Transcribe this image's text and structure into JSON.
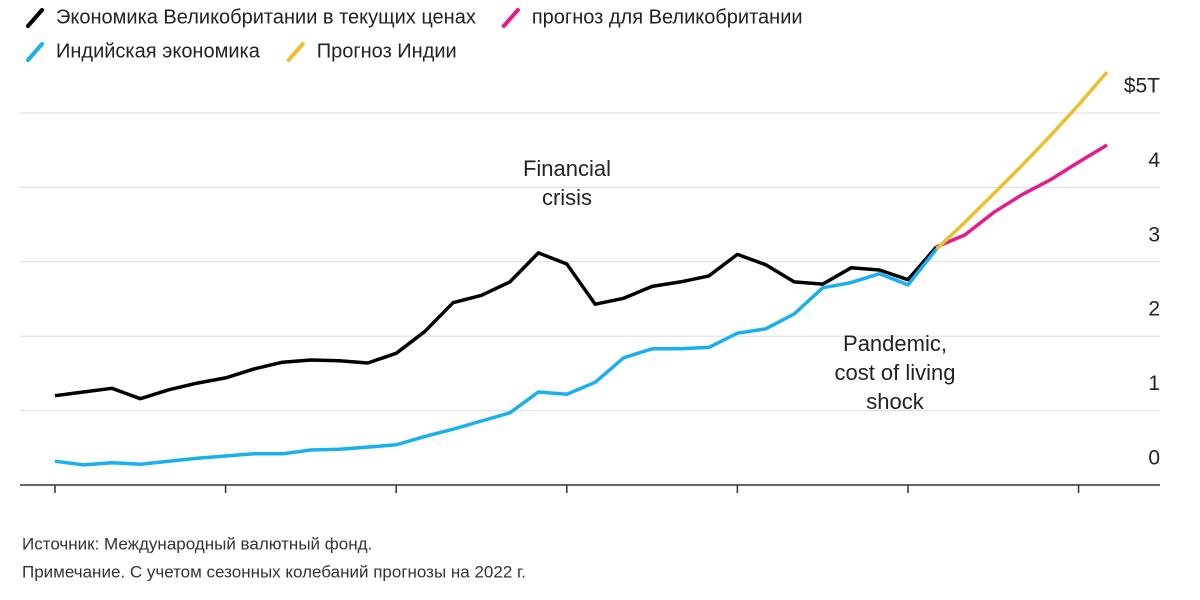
{
  "chart_data": {
    "type": "line",
    "categories": [
      null,
      null,
      null,
      null,
      null,
      null,
      null,
      null,
      null,
      null,
      null,
      null,
      null,
      null,
      null,
      null,
      null,
      null,
      null,
      null,
      null,
      null,
      null,
      null,
      null,
      null,
      null,
      null,
      null,
      null,
      null,
      null,
      null,
      null,
      null,
      null,
      null,
      null
    ],
    "xticks": [
      0,
      6,
      12,
      18,
      24,
      30,
      36
    ],
    "ylim": [
      0,
      5.6
    ],
    "yticks": [
      0,
      1,
      2,
      3,
      4,
      {
        "value": 5,
        "label": "$5T"
      }
    ],
    "grid": true,
    "series": [
      {
        "name": "Экономика Великобритании в текущих ценах",
        "color": "#000000",
        "values": [
          1.2,
          1.25,
          1.3,
          1.16,
          1.28,
          1.37,
          1.44,
          1.56,
          1.65,
          1.68,
          1.67,
          1.64,
          1.77,
          2.06,
          2.45,
          2.55,
          2.73,
          3.12,
          2.97,
          2.43,
          2.51,
          2.67,
          2.73,
          2.81,
          3.1,
          2.96,
          2.73,
          2.7,
          2.92,
          2.89,
          2.76,
          3.2,
          null,
          null,
          null,
          null,
          null,
          null
        ]
      },
      {
        "name": "прогноз для Великобритании",
        "color": "#e8198b",
        "values": [
          null,
          null,
          null,
          null,
          null,
          null,
          null,
          null,
          null,
          null,
          null,
          null,
          null,
          null,
          null,
          null,
          null,
          null,
          null,
          null,
          null,
          null,
          null,
          null,
          null,
          null,
          null,
          null,
          null,
          null,
          null,
          3.2,
          3.36,
          3.66,
          3.9,
          4.1,
          4.34,
          4.57
        ]
      },
      {
        "name": "Индийская экономика",
        "color": "#1ab0f0",
        "values": [
          0.32,
          0.27,
          0.3,
          0.28,
          0.32,
          0.36,
          0.39,
          0.42,
          0.42,
          0.47,
          0.48,
          0.51,
          0.54,
          0.65,
          0.75,
          0.86,
          0.97,
          1.25,
          1.22,
          1.38,
          1.71,
          1.83,
          1.83,
          1.85,
          2.04,
          2.1,
          2.3,
          2.65,
          2.72,
          2.84,
          2.69,
          3.17,
          null,
          null,
          null,
          null,
          null,
          null
        ]
      },
      {
        "name": "Прогноз Индии",
        "color": "#e9c12d",
        "values": [
          null,
          null,
          null,
          null,
          null,
          null,
          null,
          null,
          null,
          null,
          null,
          null,
          null,
          null,
          null,
          null,
          null,
          null,
          null,
          null,
          null,
          null,
          null,
          null,
          null,
          null,
          null,
          null,
          null,
          null,
          null,
          3.17,
          3.53,
          3.91,
          4.29,
          4.69,
          5.11,
          5.55
        ]
      }
    ],
    "annotations": [
      [
        "Financial",
        "crisis"
      ],
      [
        "Pandemic,",
        "cost of living",
        "shock"
      ]
    ],
    "footer": [
      "Источник: Международный валютный фонд.",
      "Примечание. С учетом сезонных колебаний прогнозы на 2022 г."
    ]
  }
}
